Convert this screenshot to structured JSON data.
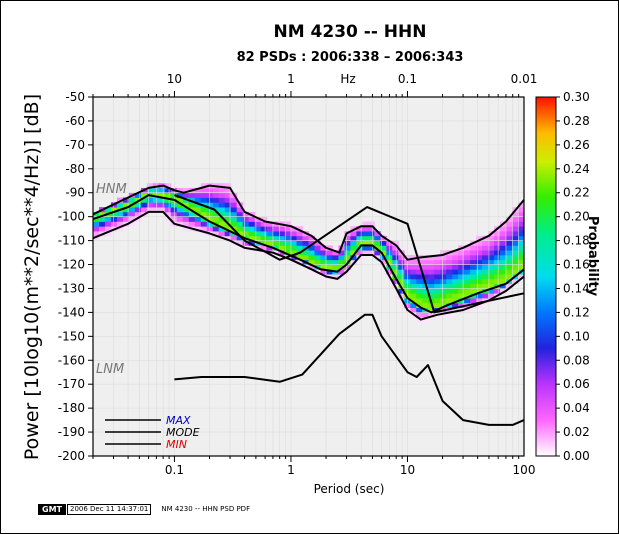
{
  "chart_data": {
    "type": "heatmap",
    "title": "NM 4230 -- HHN",
    "subtitle": "82 PSDs : 2006:338 – 2006:343",
    "xlabel": "Period (sec)",
    "ylabel": "Power [10log10(m**2/sec**4/Hz)] [dB]",
    "top_axis_label": "Hz",
    "colorbar_label": "Probability",
    "x_scale": "log",
    "xlim": [
      0.02,
      100
    ],
    "ylim": [
      -200,
      -50
    ],
    "x_ticks": [
      {
        "value": 0.1,
        "label": "0.1"
      },
      {
        "value": 1,
        "label": "1"
      },
      {
        "value": 10,
        "label": "10"
      },
      {
        "value": 100,
        "label": "100"
      }
    ],
    "top_ticks": [
      {
        "period": 0.1,
        "label": "10"
      },
      {
        "period": 1,
        "label": "1"
      },
      {
        "period": 10,
        "label": "0.1"
      },
      {
        "period": 100,
        "label": "0.01"
      }
    ],
    "y_ticks": [
      -50,
      -60,
      -70,
      -80,
      -90,
      -100,
      -110,
      -120,
      -130,
      -140,
      -150,
      -160,
      -170,
      -180,
      -190,
      -200
    ],
    "colorbar": {
      "range": [
        0.0,
        0.3
      ],
      "ticks": [
        "0.00",
        "0.02",
        "0.04",
        "0.06",
        "0.08",
        "0.10",
        "0.12",
        "0.14",
        "0.16",
        "0.18",
        "0.20",
        "0.22",
        "0.24",
        "0.26",
        "0.28",
        "0.30"
      ]
    },
    "curve_labels": {
      "hnm": "HNM",
      "lnm": "LNM"
    },
    "legend": {
      "placement": "bottom-left",
      "entries": [
        {
          "label": "MAX",
          "color": "#0000cc"
        },
        {
          "label": "MODE",
          "color": "#000000"
        },
        {
          "label": "MIN",
          "color": "#dd0000"
        }
      ]
    },
    "series": [
      {
        "name": "HNM",
        "x": [
          0.1,
          0.22,
          0.4,
          0.8,
          1.2,
          4.5,
          10,
          17,
          100
        ],
        "y": [
          -91,
          -97,
          -110,
          -118,
          -115,
          -96,
          -103,
          -140,
          -132
        ]
      },
      {
        "name": "LNM",
        "x": [
          0.1,
          0.17,
          0.4,
          0.8,
          1.25,
          2.6,
          4.3,
          5,
          6,
          10,
          12,
          15,
          20,
          30,
          50,
          80,
          100
        ],
        "y": [
          -168,
          -167,
          -167,
          -169,
          -166,
          -149,
          -141,
          -141,
          -150,
          -165,
          -167,
          -162,
          -177,
          -185,
          -187,
          -187,
          -185
        ]
      },
      {
        "name": "MODE",
        "x": [
          0.02,
          0.04,
          0.06,
          0.1,
          0.2,
          0.4,
          0.7,
          1.2,
          1.8,
          2.5,
          3,
          4,
          5,
          6,
          8,
          10,
          13,
          16,
          22,
          40,
          70,
          100
        ],
        "y": [
          -101,
          -96,
          -91,
          -93,
          -102,
          -109,
          -113,
          -118,
          -122,
          -123,
          -120,
          -112,
          -112,
          -115,
          -126,
          -134,
          -138,
          -140,
          -137,
          -132,
          -128,
          -122
        ]
      },
      {
        "name": "MAX",
        "x": [
          0.02,
          0.04,
          0.06,
          0.08,
          0.1,
          0.12,
          0.2,
          0.3,
          0.4,
          0.6,
          1,
          1.5,
          2,
          2.6,
          3,
          4,
          5,
          6,
          8,
          10,
          13,
          20,
          30,
          50,
          70,
          100
        ],
        "y": [
          -99,
          -92,
          -88,
          -87,
          -89,
          -90,
          -87,
          -88,
          -98,
          -102,
          -104,
          -108,
          -113,
          -115,
          -107,
          -104,
          -104,
          -108,
          -112,
          -118,
          -117,
          -116,
          -113,
          -108,
          -102,
          -93
        ]
      },
      {
        "name": "MIN",
        "x": [
          0.02,
          0.04,
          0.06,
          0.08,
          0.1,
          0.2,
          0.3,
          0.4,
          0.7,
          1,
          1.5,
          2,
          2.5,
          3,
          4,
          5,
          6,
          8,
          10,
          13,
          18,
          30,
          50,
          70,
          100
        ],
        "y": [
          -109,
          -103,
          -98,
          -98,
          -103,
          -107,
          -110,
          -113,
          -115,
          -118,
          -122,
          -125,
          -126,
          -123,
          -116,
          -116,
          -119,
          -130,
          -139,
          -143,
          -141,
          -139,
          -135,
          -131,
          -125
        ]
      }
    ]
  },
  "footer": {
    "logo_text": "GMT",
    "timestamp": "2006 Dec 11 14:37:01",
    "caption": "NM 4230 -- HHN PSD PDF"
  }
}
